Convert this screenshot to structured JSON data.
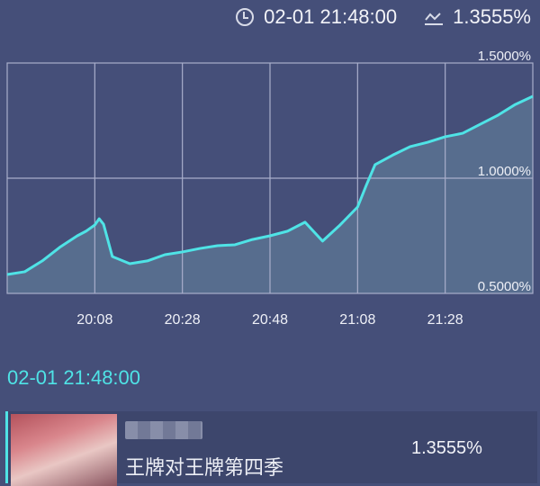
{
  "header": {
    "time": "02-01 21:48:00",
    "value": "1.3555%",
    "time_icon": "clock-icon",
    "value_icon": "trend-line-icon"
  },
  "colors": {
    "background": "#454f79",
    "line": "#4fe3e6",
    "fill": "#5d7796",
    "grid": "#a9aecb"
  },
  "chart_data": {
    "type": "area",
    "x": [
      "19:48",
      "19:52",
      "19:56",
      "20:00",
      "20:04",
      "20:06",
      "20:08",
      "20:09",
      "20:10",
      "20:12",
      "20:16",
      "20:20",
      "20:24",
      "20:28",
      "20:32",
      "20:36",
      "20:40",
      "20:44",
      "20:48",
      "20:52",
      "20:56",
      "21:00",
      "21:04",
      "21:08",
      "21:10",
      "21:12",
      "21:16",
      "21:20",
      "21:24",
      "21:28",
      "21:32",
      "21:36",
      "21:40",
      "21:44",
      "21:48"
    ],
    "values": [
      0.582,
      0.594,
      0.641,
      0.7,
      0.75,
      0.77,
      0.797,
      0.824,
      0.8,
      0.66,
      0.629,
      0.641,
      0.668,
      0.68,
      0.695,
      0.707,
      0.711,
      0.734,
      0.75,
      0.77,
      0.809,
      0.727,
      0.797,
      0.875,
      0.97,
      1.059,
      1.1,
      1.137,
      1.156,
      1.18,
      1.195,
      1.234,
      1.273,
      1.32,
      1.3555
    ],
    "xticks": [
      "20:08",
      "20:28",
      "20:48",
      "21:08",
      "21:28"
    ],
    "yticks": [
      "1.5000%",
      "1.0000%",
      "0.5000%"
    ],
    "ylim": [
      0.5,
      1.5
    ],
    "xlim": [
      "19:48",
      "21:48"
    ],
    "grid": true
  },
  "selection": {
    "time": "02-01 21:48:00"
  },
  "card": {
    "program": "王牌对王牌第四季",
    "value": "1.3555%"
  }
}
